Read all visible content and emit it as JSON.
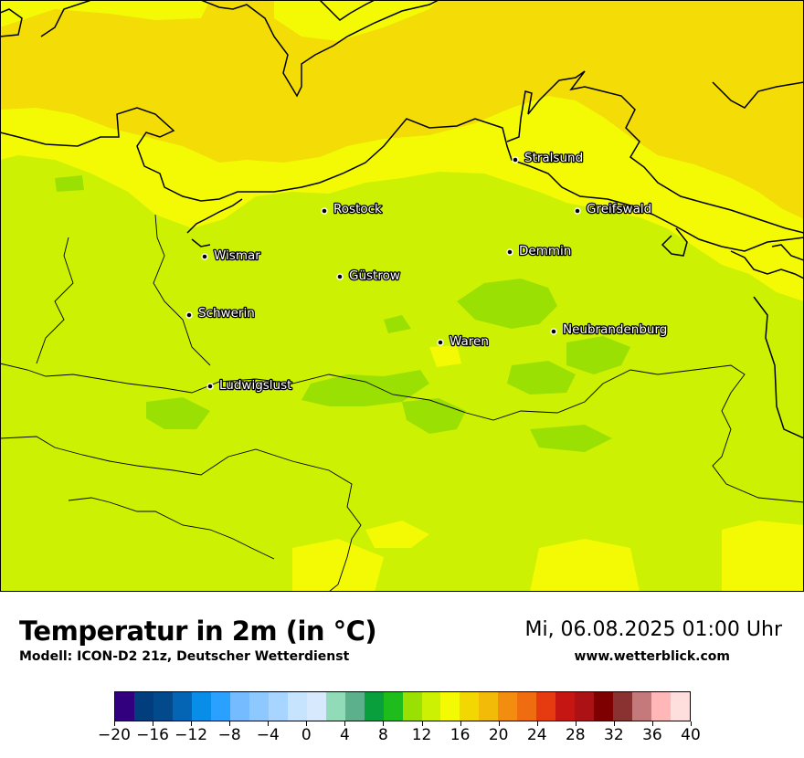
{
  "map": {
    "cities": [
      {
        "name": "Stralsund"
      },
      {
        "name": "Rostock"
      },
      {
        "name": "Greifswald"
      },
      {
        "name": "Wismar"
      },
      {
        "name": "Demmin"
      },
      {
        "name": "Güstrow"
      },
      {
        "name": "Schwerin"
      },
      {
        "name": "Neubrandenburg"
      },
      {
        "name": "Waren"
      },
      {
        "name": "Ludwigslust"
      }
    ]
  },
  "footer": {
    "title": "Temperatur in 2m (in °C)",
    "subtitle": "Modell: ICON-D2 21z, Deutscher Wetterdienst",
    "datetime": "Mi, 06.08.2025 01:00 Uhr",
    "website": "www.wetterblick.com"
  },
  "colorbar": {
    "ticks": [
      "−20",
      "−16",
      "−12",
      "−8",
      "−4",
      "0",
      "4",
      "8",
      "12",
      "16",
      "20",
      "24",
      "28",
      "32",
      "36",
      "40"
    ],
    "colors": [
      "#32007f",
      "#023e7d",
      "#024a8c",
      "#0565b5",
      "#088de9",
      "#2aa0ff",
      "#74bcff",
      "#8dc8ff",
      "#a8d5ff",
      "#c7e4ff",
      "#d7eafd",
      "#92dbb8",
      "#5cb08c",
      "#089f3c",
      "#1ebd1b",
      "#9be003",
      "#cdf103",
      "#f4fa04",
      "#f2d703",
      "#f2bb07",
      "#f28d10",
      "#ef6c10",
      "#e63a10",
      "#c51614",
      "#ac1115",
      "#7f0000",
      "#8a3232",
      "#c47a7a",
      "#ffb7b7",
      "#ffdede"
    ]
  }
}
